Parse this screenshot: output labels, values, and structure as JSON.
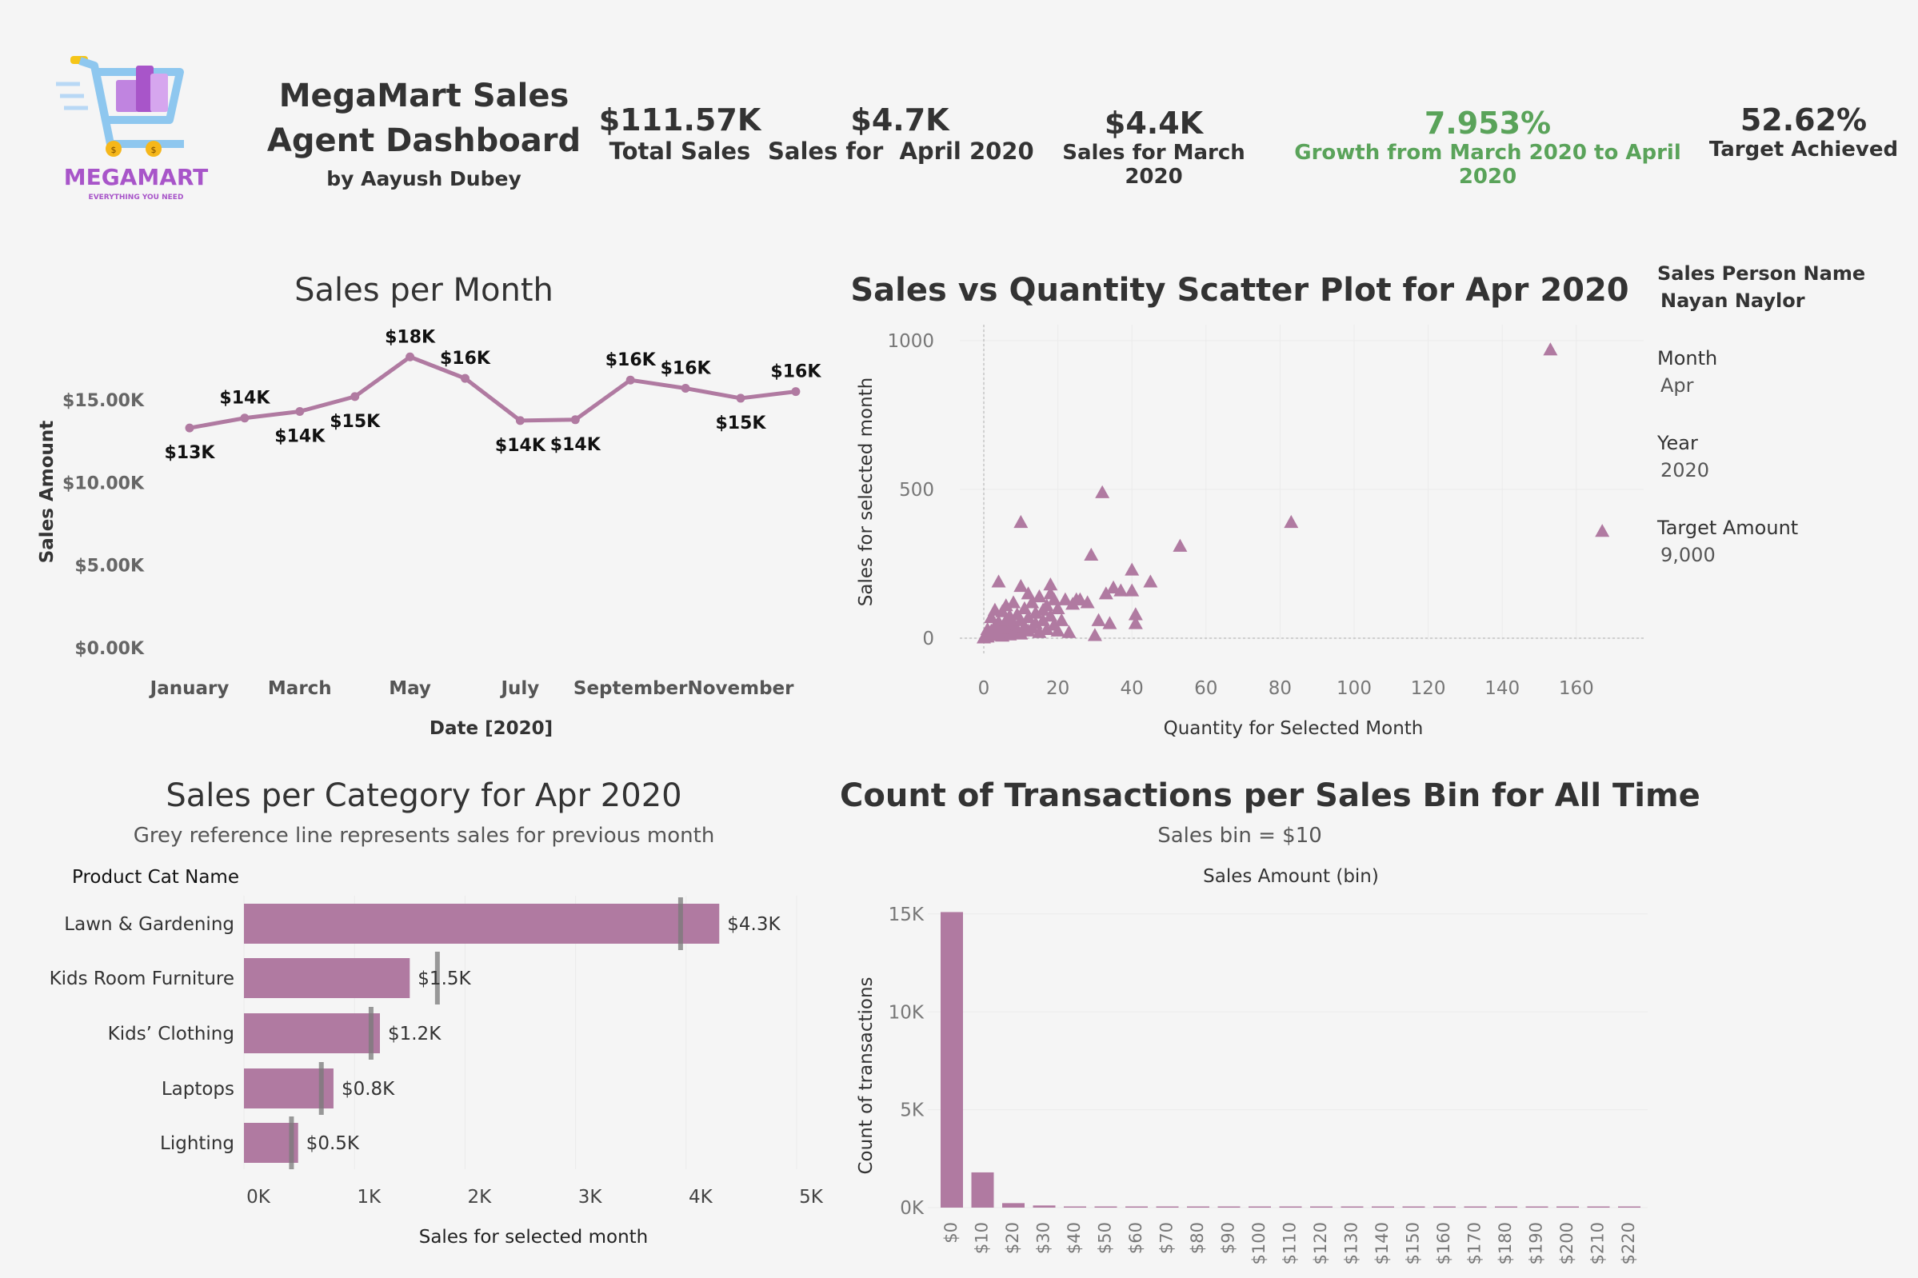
{
  "logo": {
    "brand": "MEGAMART",
    "tagline": "EVERYTHING YOU NEED",
    "accent": "#a855c9"
  },
  "header": {
    "title_line1": "MegaMart Sales",
    "title_line2": "Agent Dashboard",
    "author": "by Aayush Dubey"
  },
  "kpis": [
    {
      "value": "$111.57K",
      "label": "Total Sales"
    },
    {
      "value": "$4.7K",
      "label": "Sales for  April 2020"
    },
    {
      "value": "$4.4K",
      "label": "Sales for March 2020"
    },
    {
      "value": "7.953%",
      "label": "Growth from March 2020 to April 2020",
      "color": "#5aa35a"
    },
    {
      "value": "52.62%",
      "label": "Target Achieved"
    }
  ],
  "filters": {
    "sales_person_label": "Sales Person Name",
    "sales_person_value": "Nayan Naylor",
    "month_label": "Month",
    "month_value": "Apr",
    "year_label": "Year",
    "year_value": "2020",
    "target_label": "Target Amount",
    "target_value": "9,000"
  },
  "colors": {
    "mark": "#b07aa1",
    "ref_line": "#7a7a7a"
  },
  "chart_data": [
    {
      "id": "sales-per-month",
      "type": "line",
      "title": "Sales per Month",
      "xlabel": "Date [2020]",
      "ylabel": "Sales Amount",
      "x": [
        "January",
        "February",
        "March",
        "April",
        "May",
        "June",
        "July",
        "August",
        "September",
        "October",
        "November",
        "December"
      ],
      "x_tick_labels": [
        "January",
        "March",
        "May",
        "July",
        "September",
        "November"
      ],
      "values": [
        13300,
        13900,
        14300,
        15200,
        17600,
        16300,
        13750,
        13800,
        16200,
        15700,
        15100,
        15500
      ],
      "data_labels": [
        "$13K",
        "$14K",
        "$14K",
        "$15K",
        "$18K",
        "$16K",
        "$14K",
        "$14K",
        "$16K",
        "$16K",
        "$15K",
        "$16K"
      ],
      "y_ticks": [
        0,
        5000,
        10000,
        15000
      ],
      "y_tick_labels": [
        "$0.00K",
        "$5.00K",
        "$10.00K",
        "$15.00K"
      ],
      "ylim": [
        0,
        18000
      ]
    },
    {
      "id": "sales-vs-quantity",
      "type": "scatter",
      "title": "Sales vs Quantity Scatter Plot for Apr 2020",
      "xlabel": "Quantity for Selected Month",
      "ylabel": "Sales for selected month",
      "xlim": [
        -5,
        177
      ],
      "ylim": [
        -20,
        1050
      ],
      "x_ticks": [
        0,
        20,
        40,
        60,
        80,
        100,
        120,
        140,
        160
      ],
      "y_ticks": [
        0,
        500,
        1000
      ],
      "points": [
        [
          0,
          2
        ],
        [
          1,
          5
        ],
        [
          2,
          10
        ],
        [
          2,
          25
        ],
        [
          3,
          15
        ],
        [
          3,
          40
        ],
        [
          4,
          20
        ],
        [
          4,
          55
        ],
        [
          5,
          8
        ],
        [
          5,
          30
        ],
        [
          5,
          90
        ],
        [
          6,
          45
        ],
        [
          6,
          60
        ],
        [
          7,
          12
        ],
        [
          7,
          35
        ],
        [
          7,
          75
        ],
        [
          8,
          20
        ],
        [
          8,
          50
        ],
        [
          9,
          30
        ],
        [
          9,
          80
        ],
        [
          10,
          15
        ],
        [
          10,
          60
        ],
        [
          11,
          40
        ],
        [
          11,
          100
        ],
        [
          12,
          25
        ],
        [
          12,
          70
        ],
        [
          13,
          35
        ],
        [
          13,
          120
        ],
        [
          14,
          50
        ],
        [
          14,
          85
        ],
        [
          15,
          20
        ],
        [
          15,
          140
        ],
        [
          16,
          60
        ],
        [
          16,
          95
        ],
        [
          17,
          30
        ],
        [
          17,
          110
        ],
        [
          18,
          75
        ],
        [
          18,
          150
        ],
        [
          19,
          45
        ],
        [
          19,
          130
        ],
        [
          20,
          25
        ],
        [
          20,
          100
        ],
        [
          21,
          60
        ],
        [
          22,
          130
        ],
        [
          23,
          20
        ],
        [
          24,
          115
        ],
        [
          25,
          130
        ],
        [
          26,
          130
        ],
        [
          28,
          120
        ],
        [
          29,
          280
        ],
        [
          30,
          10
        ],
        [
          31,
          60
        ],
        [
          32,
          490
        ],
        [
          33,
          150
        ],
        [
          34,
          50
        ],
        [
          35,
          170
        ],
        [
          37,
          160
        ],
        [
          40,
          230
        ],
        [
          40,
          160
        ],
        [
          41,
          80
        ],
        [
          41,
          50
        ],
        [
          45,
          190
        ],
        [
          53,
          310
        ],
        [
          83,
          390
        ],
        [
          153,
          970
        ],
        [
          167,
          360
        ],
        [
          4,
          190
        ],
        [
          10,
          390
        ],
        [
          10,
          175
        ],
        [
          3,
          95
        ],
        [
          6,
          110
        ],
        [
          8,
          120
        ],
        [
          12,
          150
        ],
        [
          18,
          180
        ],
        [
          2,
          70
        ],
        [
          1,
          30
        ]
      ]
    },
    {
      "id": "sales-per-category",
      "type": "bar",
      "title": "Sales per Category for Apr 2020",
      "subtitle": "Grey reference line represents sales for previous month",
      "category_header": "Product Cat Name",
      "xlabel": "Sales for selected month",
      "categories": [
        "Lawn & Gardening",
        "Kids Room Furniture",
        "Kids’ Clothing",
        "Laptops",
        "Lighting"
      ],
      "values": [
        4300,
        1500,
        1230,
        810,
        490
      ],
      "data_labels": [
        "$4.3K",
        "$1.5K",
        "$1.2K",
        "$0.8K",
        "$0.5K"
      ],
      "reference_values": [
        3950,
        1750,
        1150,
        700,
        430
      ],
      "x_ticks": [
        0,
        1000,
        2000,
        3000,
        4000,
        5000
      ],
      "x_tick_labels": [
        "0K",
        "1K",
        "2K",
        "3K",
        "4K",
        "5K"
      ],
      "xlim": [
        -100,
        5100
      ]
    },
    {
      "id": "transactions-per-bin",
      "type": "bar",
      "title": "Count of Transactions per Sales Bin for All Time",
      "subtitle": "Sales bin = $10",
      "top_label": "Sales Amount (bin)",
      "ylabel": "Count of transactions",
      "categories": [
        "$0",
        "$10",
        "$20",
        "$30",
        "$40",
        "$50",
        "$60",
        "$70",
        "$80",
        "$90",
        "$100",
        "$110",
        "$120",
        "$130",
        "$140",
        "$150",
        "$160",
        "$170",
        "$180",
        "$190",
        "$200",
        "$210",
        "$220"
      ],
      "values": [
        15100,
        1800,
        230,
        110,
        40,
        30,
        25,
        60,
        15,
        10,
        8,
        6,
        5,
        4,
        3,
        3,
        2,
        2,
        2,
        1,
        1,
        1,
        1
      ],
      "y_ticks": [
        0,
        5000,
        10000,
        15000
      ],
      "y_tick_labels": [
        "0K",
        "5K",
        "10K",
        "15K"
      ],
      "ylim": [
        0,
        15200
      ]
    }
  ]
}
